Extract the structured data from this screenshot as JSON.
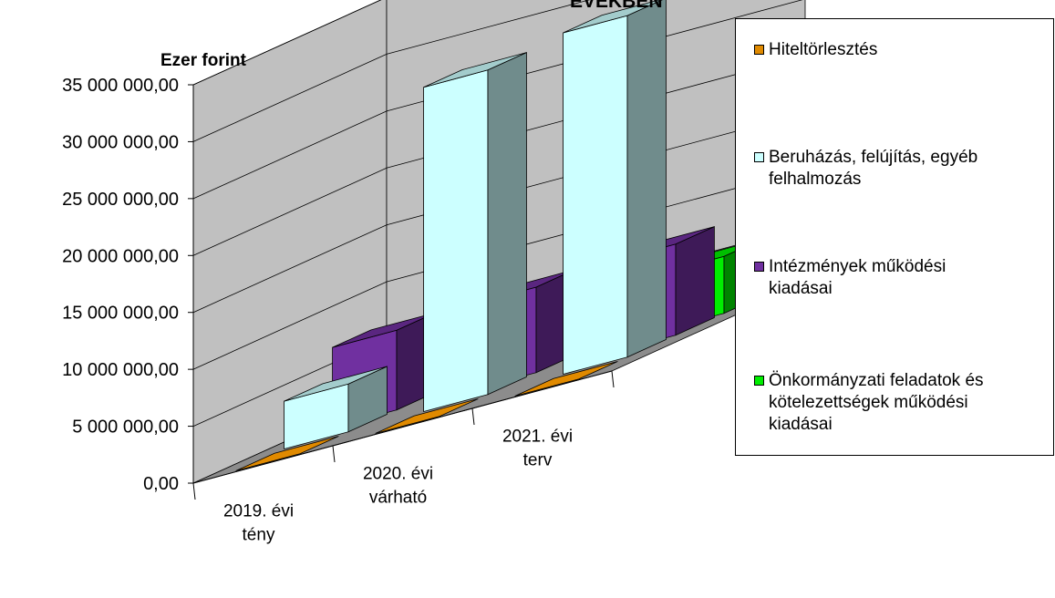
{
  "chart_data": {
    "type": "bar",
    "title": "ÉVEKBEN",
    "ylabel": "Ezer forint",
    "xlabel": "",
    "ylim": [
      0,
      35000000
    ],
    "yticks": [
      "0,00",
      "5 000 000,00",
      "10 000 000,00",
      "15 000 000,00",
      "20 000 000,00",
      "25 000 000,00",
      "30 000 000,00",
      "35 000 000,00"
    ],
    "categories": [
      [
        "2019. évi",
        "tény"
      ],
      [
        "2020. évi",
        "várható"
      ],
      [
        "2021. évi",
        "terv"
      ]
    ],
    "series": [
      {
        "name": "Hiteltörlesztés",
        "color": "#e08a00",
        "values": [
          0,
          0,
          0
        ]
      },
      {
        "name": "Beruházás, felújítás, egyéb felhalmozás",
        "color": "#ccffff",
        "values": [
          4200000,
          28500000,
          30000000
        ]
      },
      {
        "name": "Intézmények működési kiadásai",
        "color": "#7030a0",
        "values": [
          7000000,
          7500000,
          8000000
        ]
      },
      {
        "name": "Önkormányzati feladatok és kötelezettségek működési kiadásai",
        "color": "#00ee00",
        "values": [
          6000000,
          6400000,
          5000000
        ]
      }
    ],
    "legend_position": "right",
    "grid": true
  },
  "legend": {
    "items": [
      {
        "lines": [
          "Hiteltörlesztés"
        ],
        "color": "#e08a00"
      },
      {
        "lines": [
          "Beruházás, felújítás, egyéb",
          "felhalmozás"
        ],
        "color": "#ccffff"
      },
      {
        "lines": [
          "Intézmények működési",
          "kiadásai"
        ],
        "color": "#7030a0"
      },
      {
        "lines": [
          "Önkormányzati feladatok és",
          "kötelezettségek működési",
          "kiadásai"
        ],
        "color": "#00ee00"
      }
    ]
  }
}
